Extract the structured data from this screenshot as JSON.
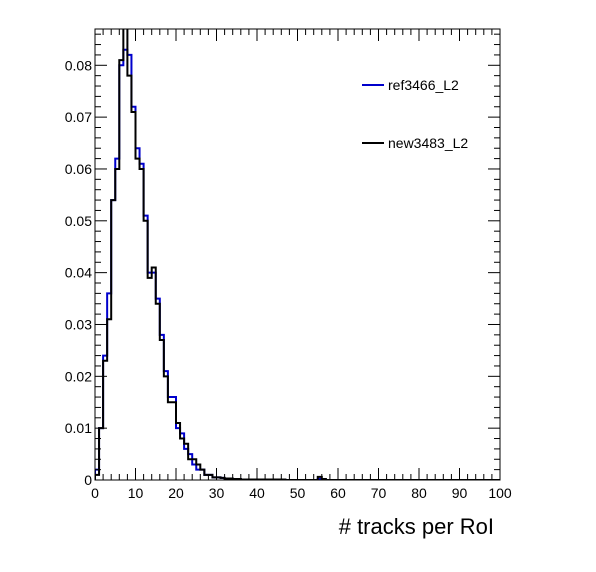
{
  "chart_data": {
    "type": "line",
    "style": "step-histogram",
    "xlabel": "# tracks per RoI",
    "ylabel": "",
    "xlim": [
      0,
      100
    ],
    "ylim": [
      0,
      0.087
    ],
    "bin_width": 1,
    "x_ticks": [
      0,
      10,
      20,
      30,
      40,
      50,
      60,
      70,
      80,
      90,
      100
    ],
    "y_ticks": [
      0,
      0.01,
      0.02,
      0.03,
      0.04,
      0.05,
      0.06,
      0.07,
      0.08
    ],
    "x_tick_labels": [
      "0",
      "10",
      "20",
      "30",
      "40",
      "50",
      "60",
      "70",
      "80",
      "90",
      "100"
    ],
    "y_tick_labels": [
      "0",
      "0.01",
      "0.02",
      "0.03",
      "0.04",
      "0.05",
      "0.06",
      "0.07",
      "0.08"
    ],
    "grid": false,
    "legend": "top-right",
    "series": [
      {
        "name": "ref3466_L2",
        "color": "#0000cc",
        "values": [
          0.002,
          0.01,
          0.024,
          0.036,
          0.054,
          0.062,
          0.08,
          0.083,
          0.082,
          0.072,
          0.064,
          0.061,
          0.051,
          0.04,
          0.04,
          0.035,
          0.028,
          0.021,
          0.016,
          0.016,
          0.01,
          0.009,
          0.006,
          0.005,
          0.003,
          0.002,
          0.002,
          0.001,
          0.001,
          0.0005,
          0.0005,
          0.0004,
          0.0003,
          0.0003,
          0.0002,
          0.0002,
          0.0001,
          0.0001,
          0.0001,
          0.0001,
          0.0001,
          0.0001,
          0.0001,
          0.0001,
          0.0001,
          0.0001,
          0.0001,
          0,
          0,
          0,
          0,
          0,
          0,
          0,
          0,
          0.0002,
          0.0001,
          0,
          0,
          0,
          0,
          0,
          0,
          0,
          0,
          0,
          0,
          0,
          0,
          0,
          0,
          0,
          0,
          0,
          0,
          0,
          0,
          0,
          0,
          0,
          0,
          0,
          0,
          0,
          0,
          0,
          0,
          0,
          0,
          0,
          0,
          0,
          0,
          0,
          0,
          0,
          0,
          0,
          0,
          0
        ]
      },
      {
        "name": "new3483_L2",
        "color": "#000000",
        "values": [
          0.001,
          0.01,
          0.023,
          0.031,
          0.054,
          0.06,
          0.081,
          0.088,
          0.078,
          0.071,
          0.062,
          0.06,
          0.05,
          0.039,
          0.041,
          0.034,
          0.027,
          0.02,
          0.015,
          0.015,
          0.011,
          0.008,
          0.007,
          0.004,
          0.004,
          0.003,
          0.002,
          0.001,
          0.001,
          0.0005,
          0.0005,
          0.0004,
          0.0003,
          0.0003,
          0.0002,
          0.0002,
          0.0001,
          0.0001,
          0.0001,
          0.0001,
          0.0001,
          0.0001,
          0.0001,
          0.0001,
          0.0001,
          0.0001,
          0.0001,
          0,
          0,
          0,
          0,
          0,
          0,
          0,
          0,
          0.0006,
          0.0002,
          0,
          0,
          0,
          0,
          0,
          0,
          0,
          0,
          0,
          0,
          0,
          0,
          0,
          0,
          0,
          0,
          0,
          0,
          0,
          0,
          0,
          0,
          0,
          0,
          0,
          0,
          0,
          0,
          0,
          0,
          0,
          0,
          0,
          0,
          0,
          0,
          0,
          0,
          0,
          0,
          0,
          0,
          0
        ]
      }
    ]
  }
}
